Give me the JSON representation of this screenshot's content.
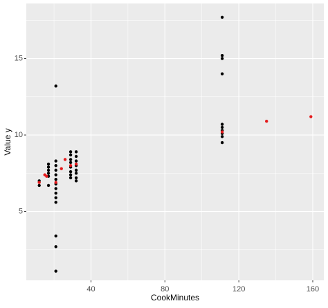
{
  "chart_data": {
    "type": "scatter",
    "x_label": "CookMinutes",
    "y_label": "Value y",
    "xlim": [
      5,
      166
    ],
    "ylim": [
      0.5,
      18.6
    ],
    "xticks": [
      40,
      80,
      120,
      160
    ],
    "yticks": [
      5,
      10,
      15
    ],
    "x_minor_ticks": [
      20,
      60,
      100,
      140
    ],
    "y_minor_ticks": [
      2.5,
      7.5,
      12.5,
      17.5
    ],
    "grid": true,
    "series": [
      {
        "color": "#000000",
        "x": [
          12,
          12,
          17,
          17,
          17,
          17,
          17,
          17,
          21,
          21,
          21,
          21,
          21,
          21,
          21,
          21,
          21,
          21,
          21,
          21,
          21,
          21,
          29,
          29,
          29,
          29,
          29,
          29,
          29,
          29,
          32,
          32,
          32,
          32,
          32,
          32,
          32,
          32,
          111,
          111,
          111,
          111,
          111,
          111,
          111,
          111,
          111,
          111
        ],
        "values": [
          7.0,
          6.7,
          8.1,
          7.9,
          7.7,
          7.5,
          7.3,
          6.7,
          13.2,
          8.3,
          8.0,
          7.7,
          7.4,
          7.1,
          6.8,
          6.5,
          6.2,
          5.9,
          5.6,
          3.4,
          2.7,
          1.1,
          8.9,
          8.7,
          8.4,
          8.2,
          7.9,
          7.6,
          7.4,
          7.2,
          8.9,
          8.6,
          8.3,
          8.0,
          7.7,
          7.5,
          7.2,
          7.0,
          17.7,
          15.2,
          15.0,
          14.0,
          10.7,
          10.5,
          10.3,
          10.1,
          9.9,
          9.5
        ]
      },
      {
        "color": "#e41a1c",
        "x": [
          12,
          15,
          16,
          21,
          24,
          26,
          29,
          32,
          111,
          135,
          159
        ],
        "values": [
          6.9,
          7.4,
          7.3,
          6.9,
          7.8,
          8.4,
          8.0,
          8.1,
          10.2,
          10.9,
          11.2
        ]
      }
    ]
  }
}
